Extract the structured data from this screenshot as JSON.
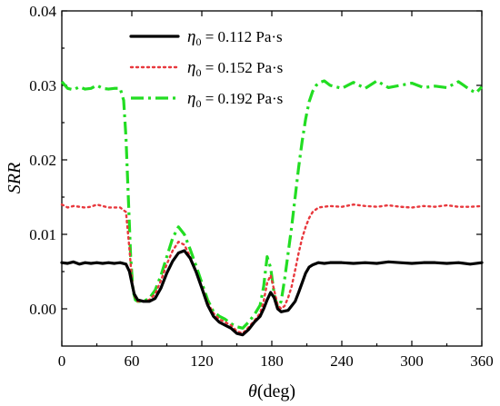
{
  "chart_data": {
    "type": "line",
    "xlabel": "θ (deg)",
    "xlabel_symbol": "θ",
    "xlabel_unit": "(deg)",
    "ylabel": "SRR",
    "xlim": [
      0,
      360
    ],
    "ylim": [
      -0.005,
      0.04
    ],
    "xticks": [
      0,
      60,
      120,
      180,
      240,
      300,
      360
    ],
    "yticks": [
      0.0,
      0.01,
      0.02,
      0.03,
      0.04
    ],
    "ytick_labels": [
      "0.00",
      "0.01",
      "0.02",
      "0.03",
      "0.04"
    ],
    "grid": false,
    "legend_position": "top-center",
    "series": [
      {
        "name": "η0 = 0.112 Pa·s",
        "legend": {
          "symbol": "η",
          "sub": "0",
          "rest": " = 0.112 Pa·s"
        },
        "color": "#000000",
        "style": "solid",
        "x": [
          0,
          5,
          10,
          15,
          20,
          25,
          30,
          35,
          40,
          45,
          50,
          55,
          58,
          60,
          62,
          65,
          70,
          75,
          80,
          85,
          90,
          95,
          100,
          105,
          110,
          115,
          120,
          125,
          130,
          135,
          140,
          145,
          150,
          155,
          160,
          165,
          170,
          173,
          176,
          179,
          182,
          185,
          188,
          191,
          194,
          197,
          200,
          203,
          206,
          209,
          212,
          215,
          220,
          225,
          230,
          240,
          250,
          260,
          270,
          280,
          290,
          300,
          310,
          320,
          330,
          340,
          350,
          360
        ],
        "y": [
          0.0062,
          0.0061,
          0.0063,
          0.006,
          0.0062,
          0.0061,
          0.0062,
          0.0061,
          0.0062,
          0.0061,
          0.0062,
          0.006,
          0.005,
          0.0035,
          0.002,
          0.0012,
          0.001,
          0.001,
          0.0014,
          0.0028,
          0.0048,
          0.0064,
          0.0075,
          0.0078,
          0.0068,
          0.005,
          0.0028,
          0.0005,
          -0.001,
          -0.0018,
          -0.0022,
          -0.0026,
          -0.0033,
          -0.0035,
          -0.0028,
          -0.0018,
          -0.001,
          0.0,
          0.0012,
          0.0022,
          0.0015,
          0.0,
          -0.0004,
          -0.0003,
          -0.0002,
          0.0004,
          0.001,
          0.0022,
          0.0035,
          0.0048,
          0.0056,
          0.0059,
          0.0062,
          0.0061,
          0.0062,
          0.0062,
          0.0061,
          0.0062,
          0.0061,
          0.0063,
          0.0062,
          0.0061,
          0.0062,
          0.0062,
          0.0061,
          0.0062,
          0.006,
          0.0062
        ]
      },
      {
        "name": "η0 = 0.152 Pa·s",
        "legend": {
          "symbol": "η",
          "sub": "0",
          "rest": " = 0.152 Pa·s"
        },
        "color": "#e8383d",
        "style": "dotted",
        "x": [
          0,
          5,
          10,
          15,
          20,
          25,
          30,
          35,
          40,
          45,
          50,
          55,
          58,
          60,
          62,
          65,
          70,
          75,
          80,
          85,
          90,
          95,
          100,
          105,
          110,
          115,
          120,
          125,
          130,
          135,
          140,
          145,
          150,
          155,
          160,
          165,
          170,
          173,
          176,
          179,
          182,
          185,
          188,
          191,
          194,
          197,
          200,
          203,
          206,
          209,
          212,
          215,
          220,
          225,
          230,
          240,
          250,
          260,
          270,
          280,
          290,
          300,
          310,
          320,
          330,
          340,
          350,
          360
        ],
        "y": [
          0.014,
          0.0136,
          0.0138,
          0.0137,
          0.0136,
          0.0137,
          0.014,
          0.0138,
          0.0136,
          0.0136,
          0.0136,
          0.013,
          0.008,
          0.004,
          0.0018,
          0.001,
          0.001,
          0.0012,
          0.002,
          0.0038,
          0.006,
          0.0078,
          0.009,
          0.0086,
          0.007,
          0.005,
          0.003,
          0.0008,
          -0.0006,
          -0.0014,
          -0.0018,
          -0.0022,
          -0.003,
          -0.0033,
          -0.0025,
          -0.0016,
          -0.0006,
          0.001,
          0.0035,
          0.0045,
          0.0025,
          0.0005,
          0.0,
          0.0004,
          0.0015,
          0.003,
          0.0052,
          0.0075,
          0.0095,
          0.011,
          0.0122,
          0.013,
          0.0136,
          0.0137,
          0.0138,
          0.0137,
          0.014,
          0.0138,
          0.0137,
          0.0139,
          0.0137,
          0.0136,
          0.0138,
          0.0137,
          0.0139,
          0.0137,
          0.0137,
          0.0138
        ]
      },
      {
        "name": "η0 = 0.192 Pa·s",
        "legend": {
          "symbol": "η",
          "sub": "0",
          "rest": " = 0.192 Pa·s"
        },
        "color": "#22dd22",
        "style": "dashdot",
        "x": [
          0,
          5,
          10,
          15,
          20,
          25,
          30,
          35,
          40,
          45,
          50,
          53,
          55,
          57,
          59,
          61,
          63,
          65,
          70,
          75,
          80,
          85,
          90,
          95,
          100,
          105,
          110,
          115,
          120,
          125,
          130,
          135,
          140,
          145,
          150,
          155,
          160,
          165,
          170,
          173,
          176,
          179,
          182,
          185,
          188,
          191,
          194,
          197,
          200,
          203,
          206,
          209,
          212,
          215,
          218,
          221,
          225,
          230,
          240,
          250,
          260,
          270,
          280,
          290,
          300,
          310,
          320,
          330,
          340,
          350,
          355,
          360
        ],
        "y": [
          0.0305,
          0.0296,
          0.0294,
          0.0298,
          0.0295,
          0.0296,
          0.03,
          0.0296,
          0.0295,
          0.0296,
          0.0296,
          0.028,
          0.023,
          0.015,
          0.007,
          0.0025,
          0.0012,
          0.001,
          0.001,
          0.0014,
          0.0025,
          0.0045,
          0.007,
          0.0095,
          0.011,
          0.01,
          0.008,
          0.0058,
          0.0035,
          0.0012,
          -0.0004,
          -0.001,
          -0.0014,
          -0.002,
          -0.0024,
          -0.0026,
          -0.0018,
          -0.0008,
          0.0005,
          0.003,
          0.007,
          0.0055,
          0.002,
          0.0002,
          0.001,
          0.004,
          0.0075,
          0.011,
          0.015,
          0.019,
          0.0225,
          0.0255,
          0.0278,
          0.0292,
          0.03,
          0.0304,
          0.0306,
          0.03,
          0.0296,
          0.0304,
          0.0296,
          0.0306,
          0.0297,
          0.03,
          0.0303,
          0.0297,
          0.0299,
          0.0297,
          0.0305,
          0.0294,
          0.029,
          0.0298
        ]
      }
    ]
  }
}
